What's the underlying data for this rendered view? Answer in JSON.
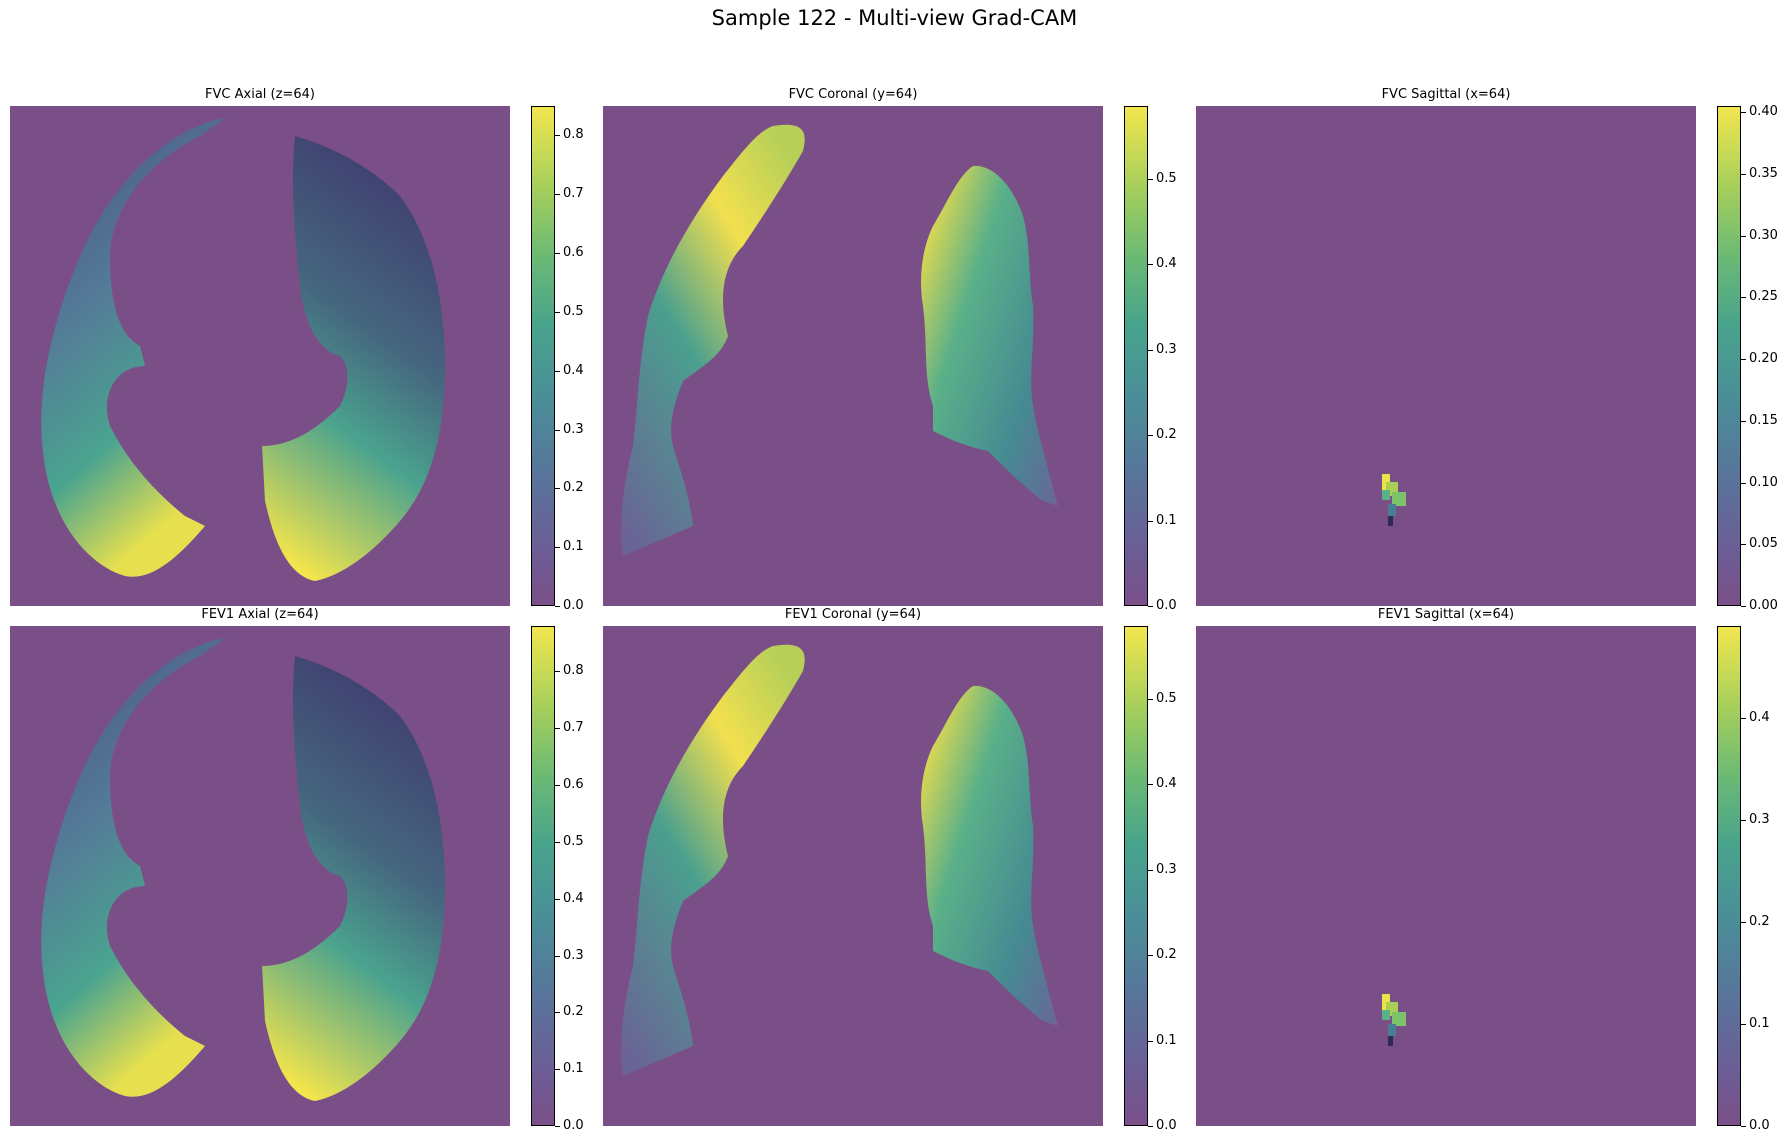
{
  "figure": {
    "title": "Sample 122 - Multi-view Grad-CAM"
  },
  "colors": {
    "background_tissue": "#7a4f88",
    "cmap_low": "#7a4f88",
    "cmap_mid": "#48a38c",
    "cmap_high": "#f2e64e"
  },
  "panels": [
    {
      "title": "FVC Axial (z=64)",
      "view": "axial",
      "cbar_max": 0.85,
      "ticks": [
        "0.0",
        "0.1",
        "0.2",
        "0.3",
        "0.4",
        "0.5",
        "0.6",
        "0.7",
        "0.8"
      ]
    },
    {
      "title": "FVC Coronal (y=64)",
      "view": "coronal",
      "cbar_max": 0.585,
      "ticks": [
        "0.0",
        "0.1",
        "0.2",
        "0.3",
        "0.4",
        "0.5"
      ]
    },
    {
      "title": "FVC Sagittal (x=64)",
      "view": "sagittal",
      "cbar_max": 0.405,
      "ticks": [
        "0.00",
        "0.05",
        "0.10",
        "0.15",
        "0.20",
        "0.25",
        "0.30",
        "0.35",
        "0.40"
      ]
    },
    {
      "title": "FEV1 Axial (z=64)",
      "view": "axial",
      "cbar_max": 0.88,
      "ticks": [
        "0.0",
        "0.1",
        "0.2",
        "0.3",
        "0.4",
        "0.5",
        "0.6",
        "0.7",
        "0.8"
      ]
    },
    {
      "title": "FEV1 Coronal (y=64)",
      "view": "coronal",
      "cbar_max": 0.585,
      "ticks": [
        "0.0",
        "0.1",
        "0.2",
        "0.3",
        "0.4",
        "0.5"
      ]
    },
    {
      "title": "FEV1 Sagittal (x=64)",
      "view": "sagittal",
      "cbar_max": 0.49,
      "ticks": [
        "0.0",
        "0.1",
        "0.2",
        "0.3",
        "0.4"
      ]
    }
  ]
}
